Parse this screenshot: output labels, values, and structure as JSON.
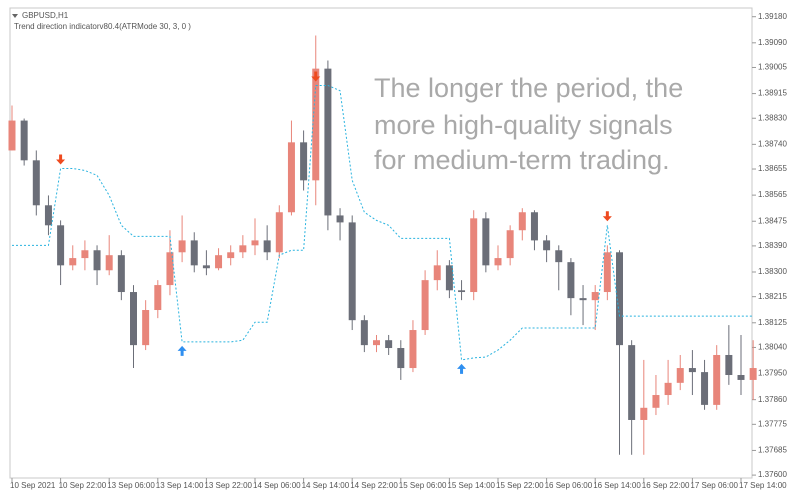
{
  "chart_data": {
    "type": "candlestick",
    "header": "GBPUSD,H1",
    "subtitle": "Trend direction indicatorv80.4(ATRMode 30, 3, 0 )",
    "annotation": [
      "The longer the period, the",
      "more high-quality signals",
      "for medium-term trading."
    ],
    "categories": [
      "10 Sep 2021",
      null,
      null,
      null,
      "10 Sep 22:00",
      null,
      null,
      null,
      "13 Sep 06:00",
      null,
      null,
      null,
      "13 Sep 14:00",
      null,
      null,
      null,
      "13 Sep 22:00",
      null,
      null,
      null,
      "14 Sep 06:00",
      null,
      null,
      null,
      "14 Sep 14:00",
      null,
      null,
      null,
      "14 Sep 22:00",
      null,
      null,
      null,
      "15 Sep 06:00",
      null,
      null,
      null,
      "15 Sep 14:00",
      null,
      null,
      null,
      "15 Sep 22:00",
      null,
      null,
      null,
      "16 Sep 06:00",
      null,
      null,
      null,
      "16 Sep 14:00",
      null,
      null,
      null,
      "16 Sep 22:00",
      null,
      null,
      null,
      "17 Sep 06:00",
      null,
      null,
      null,
      "17 Sep 14:00",
      null
    ],
    "open": [
      1.38719,
      1.38822,
      1.38685,
      1.3853,
      1.38461,
      1.38323,
      1.38348,
      1.38375,
      1.38306,
      1.38358,
      1.38231,
      1.38048,
      1.38169,
      1.38255,
      1.38368,
      1.38409,
      1.38323,
      1.38313,
      1.38348,
      1.38368,
      1.38392,
      1.38409,
      1.38368,
      1.38506,
      1.38747,
      1.38616,
      1.39001,
      1.38495,
      1.38471,
      1.38134,
      1.38048,
      1.38065,
      1.38038,
      1.37969,
      1.381,
      1.38272,
      1.38323,
      1.38237,
      1.38231,
      1.38485,
      1.38323,
      1.38348,
      1.38444,
      1.38506,
      1.38409,
      1.38375,
      1.38334,
      1.3821,
      1.38203,
      1.38231,
      1.38368,
      1.38048,
      1.3779,
      1.37832,
      1.37876,
      1.37918,
      1.37969,
      1.37955,
      1.37842,
      1.38014,
      1.37945,
      1.37928
    ],
    "high": [
      1.38874,
      1.38829,
      1.38719,
      1.38564,
      1.38478,
      1.38392,
      1.38409,
      1.38392,
      1.38427,
      1.38375,
      1.38255,
      1.38203,
      1.38272,
      1.38444,
      1.38495,
      1.38437,
      1.38375,
      1.38382,
      1.38392,
      1.38427,
      1.38485,
      1.38461,
      1.3853,
      1.38822,
      1.38788,
      1.39115,
      1.39029,
      1.3852,
      1.38495,
      1.38151,
      1.38083,
      1.38083,
      1.38065,
      1.38134,
      1.38306,
      1.38375,
      1.38341,
      1.38272,
      1.38513,
      1.38506,
      1.38392,
      1.38461,
      1.3852,
      1.38513,
      1.38427,
      1.38392,
      1.38348,
      1.38255,
      1.38255,
      1.38392,
      1.38375,
      1.38065,
      1.37997,
      1.37945,
      1.37997,
      1.38014,
      1.38031,
      1.37997,
      1.38048,
      1.38117,
      1.38083,
      1.38065
    ],
    "low": [
      1.38719,
      1.38667,
      1.38495,
      1.38427,
      1.38255,
      1.38306,
      1.38306,
      1.38255,
      1.38289,
      1.38203,
      1.37969,
      1.38031,
      1.38141,
      1.3822,
      1.38334,
      1.38299,
      1.38289,
      1.38306,
      1.38323,
      1.38348,
      1.38358,
      1.38341,
      1.38348,
      1.38495,
      1.38581,
      1.3853,
      1.38444,
      1.38409,
      1.381,
      1.38024,
      1.38024,
      1.38014,
      1.37928,
      1.37955,
      1.38083,
      1.38237,
      1.3821,
      1.38203,
      1.38203,
      1.38299,
      1.38306,
      1.38323,
      1.38409,
      1.38375,
      1.38334,
      1.38237,
      1.38151,
      1.38117,
      1.381,
      1.38203,
      1.3767,
      1.3767,
      1.3767,
      1.37807,
      1.37842,
      1.37893,
      1.37876,
      1.37825,
      1.37825,
      1.37911,
      1.37876,
      1.37859
    ],
    "close": [
      1.38822,
      1.38685,
      1.3853,
      1.38461,
      1.38323,
      1.38348,
      1.38375,
      1.38306,
      1.38358,
      1.38231,
      1.38048,
      1.38169,
      1.38255,
      1.38368,
      1.38409,
      1.38323,
      1.38313,
      1.38358,
      1.38368,
      1.38392,
      1.38409,
      1.38368,
      1.38506,
      1.38747,
      1.38616,
      1.39001,
      1.38495,
      1.38471,
      1.38134,
      1.38048,
      1.38065,
      1.38038,
      1.37969,
      1.381,
      1.38272,
      1.38323,
      1.38237,
      1.38231,
      1.38485,
      1.38323,
      1.38348,
      1.38444,
      1.38506,
      1.38409,
      1.38375,
      1.38334,
      1.3821,
      1.38203,
      1.38231,
      1.38368,
      1.38048,
      1.3779,
      1.37832,
      1.37876,
      1.37918,
      1.37969,
      1.37955,
      1.37842,
      1.38014,
      1.37945,
      1.37928,
      1.37969
    ],
    "trend": [
      1.38392,
      1.38392,
      1.38392,
      1.38392,
      1.38657,
      1.38657,
      1.3865,
      1.38633,
      1.38564,
      1.38461,
      1.38423,
      1.38423,
      1.38423,
      1.38423,
      1.38059,
      1.38059,
      1.38059,
      1.38059,
      1.38059,
      1.38065,
      1.38127,
      1.38127,
      1.38358,
      1.38375,
      1.38375,
      1.38943,
      1.38943,
      1.38925,
      1.38616,
      1.38506,
      1.38478,
      1.38461,
      1.38416,
      1.38416,
      1.38416,
      1.38416,
      1.38416,
      1.37997,
      1.38004,
      1.38007,
      1.38031,
      1.38065,
      1.38107,
      1.38107,
      1.38107,
      1.38107,
      1.38107,
      1.38107,
      1.38107,
      1.38461,
      1.38148,
      1.38148,
      1.38148,
      1.38148,
      1.38148,
      1.38148,
      1.38148,
      1.38148,
      1.38148,
      1.38148,
      1.38148,
      1.38148
    ],
    "sell_signals": [
      4,
      25,
      49
    ],
    "buy_signals": [
      14,
      37
    ],
    "bull_color": "#e8857a",
    "bear_color": "#6b6e78",
    "trend_color": "#29b3df",
    "buy_color": "#2f8ff0",
    "sell_color": "#ee4a1f",
    "ylim": [
      1.3759,
      1.3921
    ],
    "yticks": [
      {
        "value": 1.3918,
        "label": "1.39180"
      },
      {
        "value": 1.3909,
        "label": "1.39090"
      },
      {
        "value": 1.39005,
        "label": "1.39005"
      },
      {
        "value": 1.38915,
        "label": "1.38915"
      },
      {
        "value": 1.3883,
        "label": "1.38830"
      },
      {
        "value": 1.3874,
        "label": "1.38740"
      },
      {
        "value": 1.38655,
        "label": "1.38655"
      },
      {
        "value": 1.38565,
        "label": "1.38565"
      },
      {
        "value": 1.38475,
        "label": "1.38475"
      },
      {
        "value": 1.3839,
        "label": "1.38390"
      },
      {
        "value": 1.383,
        "label": "1.38300"
      },
      {
        "value": 1.38215,
        "label": "1.38215"
      },
      {
        "value": 1.38125,
        "label": "1.38125"
      },
      {
        "value": 1.3804,
        "label": "1.38040"
      },
      {
        "value": 1.3795,
        "label": "1.37950"
      },
      {
        "value": 1.3786,
        "label": "1.37860"
      },
      {
        "value": 1.37775,
        "label": "1.37775"
      },
      {
        "value": 1.37685,
        "label": "1.37685"
      },
      {
        "value": 1.376,
        "label": "1.37600"
      }
    ],
    "grid": false
  }
}
